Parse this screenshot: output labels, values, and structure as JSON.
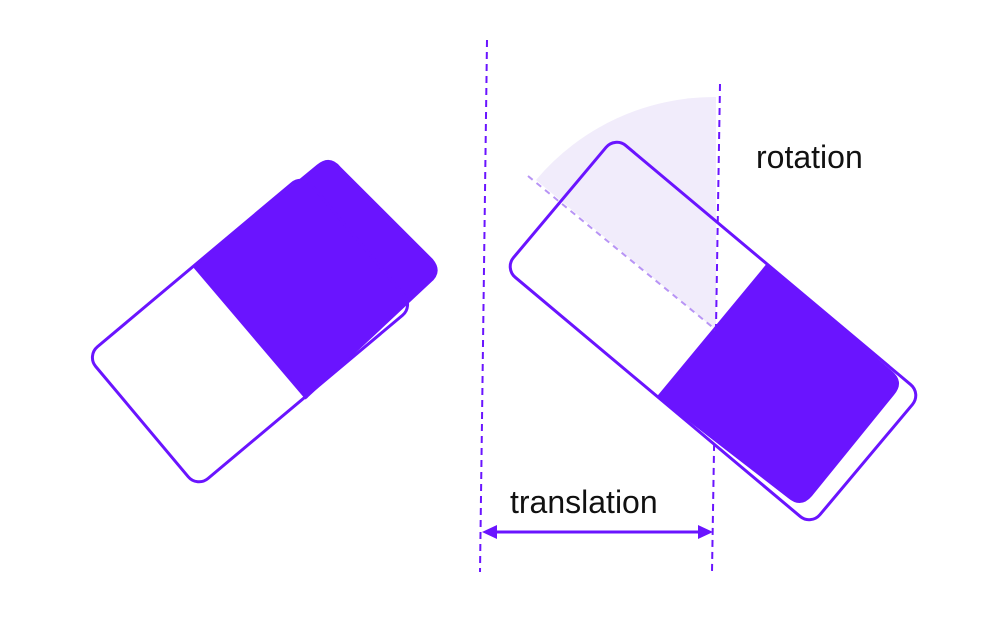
{
  "labels": {
    "rotation": "rotation",
    "translation": "translation"
  },
  "colors": {
    "accent": "#6a14ff",
    "wedge_fill": "#f1ecfb",
    "rotation_guide": "#b894f5",
    "text": "#111111"
  }
}
